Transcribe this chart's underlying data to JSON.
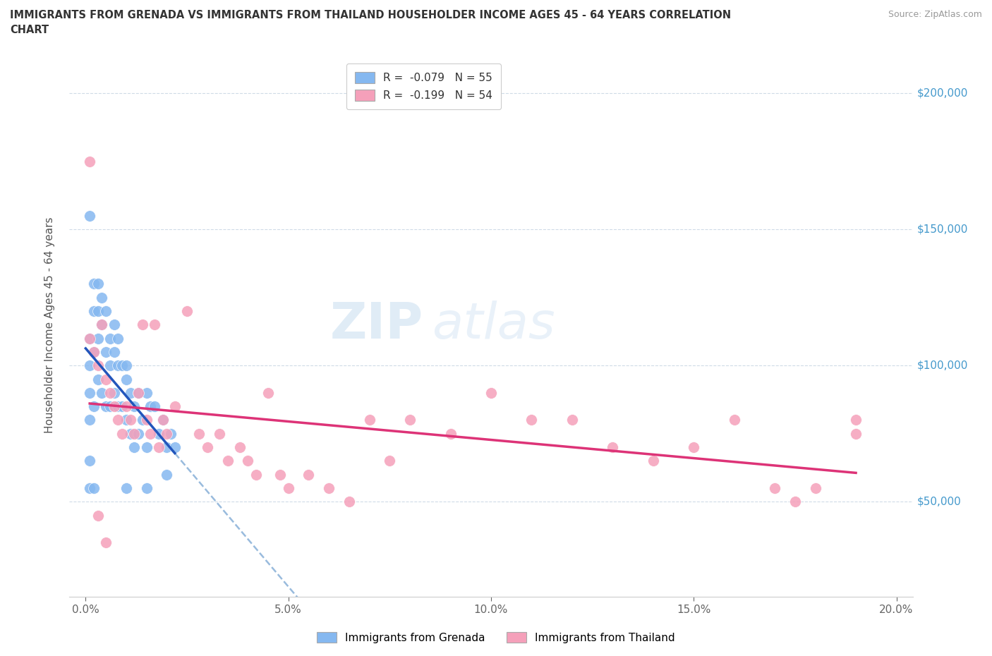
{
  "title_line1": "IMMIGRANTS FROM GRENADA VS IMMIGRANTS FROM THAILAND HOUSEHOLDER INCOME AGES 45 - 64 YEARS CORRELATION",
  "title_line2": "CHART",
  "source_text": "Source: ZipAtlas.com",
  "ylabel": "Householder Income Ages 45 - 64 years",
  "xlabel_ticks": [
    "0.0%",
    "5.0%",
    "10.0%",
    "15.0%",
    "20.0%"
  ],
  "xlabel_vals": [
    0.0,
    0.05,
    0.1,
    0.15,
    0.2
  ],
  "ylabel_ticks": [
    "$50,000",
    "$100,000",
    "$150,000",
    "$200,000"
  ],
  "ylabel_vals": [
    50000,
    100000,
    150000,
    200000
  ],
  "xlim": [
    -0.004,
    0.204
  ],
  "ylim": [
    15000,
    215000
  ],
  "watermark_zip": "ZIP",
  "watermark_atlas": "atlas",
  "legend_grenada": "R =  -0.079   N = 55",
  "legend_thailand": "R =  -0.199   N = 54",
  "legend_label_grenada": "Immigrants from Grenada",
  "legend_label_thailand": "Immigrants from Thailand",
  "color_grenada": "#85b8f0",
  "color_thailand": "#f5a0ba",
  "line_color_grenada": "#2255bb",
  "line_color_thailand": "#dd3377",
  "dash_color": "#99bbdd",
  "grenada_x": [
    0.001,
    0.001,
    0.001,
    0.001,
    0.001,
    0.002,
    0.002,
    0.002,
    0.002,
    0.003,
    0.003,
    0.003,
    0.003,
    0.004,
    0.004,
    0.004,
    0.005,
    0.005,
    0.005,
    0.006,
    0.006,
    0.006,
    0.007,
    0.007,
    0.007,
    0.008,
    0.008,
    0.008,
    0.009,
    0.009,
    0.01,
    0.01,
    0.01,
    0.011,
    0.011,
    0.012,
    0.012,
    0.013,
    0.013,
    0.014,
    0.015,
    0.015,
    0.016,
    0.017,
    0.018,
    0.019,
    0.02,
    0.021,
    0.022,
    0.001,
    0.001,
    0.002,
    0.01,
    0.015,
    0.02
  ],
  "grenada_y": [
    155000,
    110000,
    100000,
    90000,
    80000,
    130000,
    120000,
    105000,
    85000,
    130000,
    120000,
    110000,
    95000,
    125000,
    115000,
    90000,
    120000,
    105000,
    85000,
    110000,
    100000,
    85000,
    115000,
    105000,
    90000,
    110000,
    100000,
    85000,
    100000,
    85000,
    100000,
    95000,
    80000,
    90000,
    75000,
    85000,
    70000,
    90000,
    75000,
    80000,
    90000,
    70000,
    85000,
    85000,
    75000,
    80000,
    70000,
    75000,
    70000,
    65000,
    55000,
    55000,
    55000,
    55000,
    60000
  ],
  "thailand_x": [
    0.001,
    0.002,
    0.003,
    0.004,
    0.005,
    0.006,
    0.007,
    0.008,
    0.009,
    0.01,
    0.011,
    0.012,
    0.013,
    0.014,
    0.015,
    0.016,
    0.017,
    0.018,
    0.019,
    0.02,
    0.022,
    0.025,
    0.028,
    0.03,
    0.033,
    0.035,
    0.038,
    0.04,
    0.042,
    0.045,
    0.048,
    0.05,
    0.055,
    0.06,
    0.065,
    0.07,
    0.075,
    0.08,
    0.09,
    0.1,
    0.11,
    0.12,
    0.13,
    0.14,
    0.15,
    0.16,
    0.17,
    0.175,
    0.18,
    0.19,
    0.001,
    0.003,
    0.005,
    0.19
  ],
  "thailand_y": [
    110000,
    105000,
    100000,
    115000,
    95000,
    90000,
    85000,
    80000,
    75000,
    85000,
    80000,
    75000,
    90000,
    115000,
    80000,
    75000,
    115000,
    70000,
    80000,
    75000,
    85000,
    120000,
    75000,
    70000,
    75000,
    65000,
    70000,
    65000,
    60000,
    90000,
    60000,
    55000,
    60000,
    55000,
    50000,
    80000,
    65000,
    80000,
    75000,
    90000,
    80000,
    80000,
    70000,
    65000,
    70000,
    80000,
    55000,
    50000,
    55000,
    80000,
    175000,
    45000,
    35000,
    75000
  ]
}
